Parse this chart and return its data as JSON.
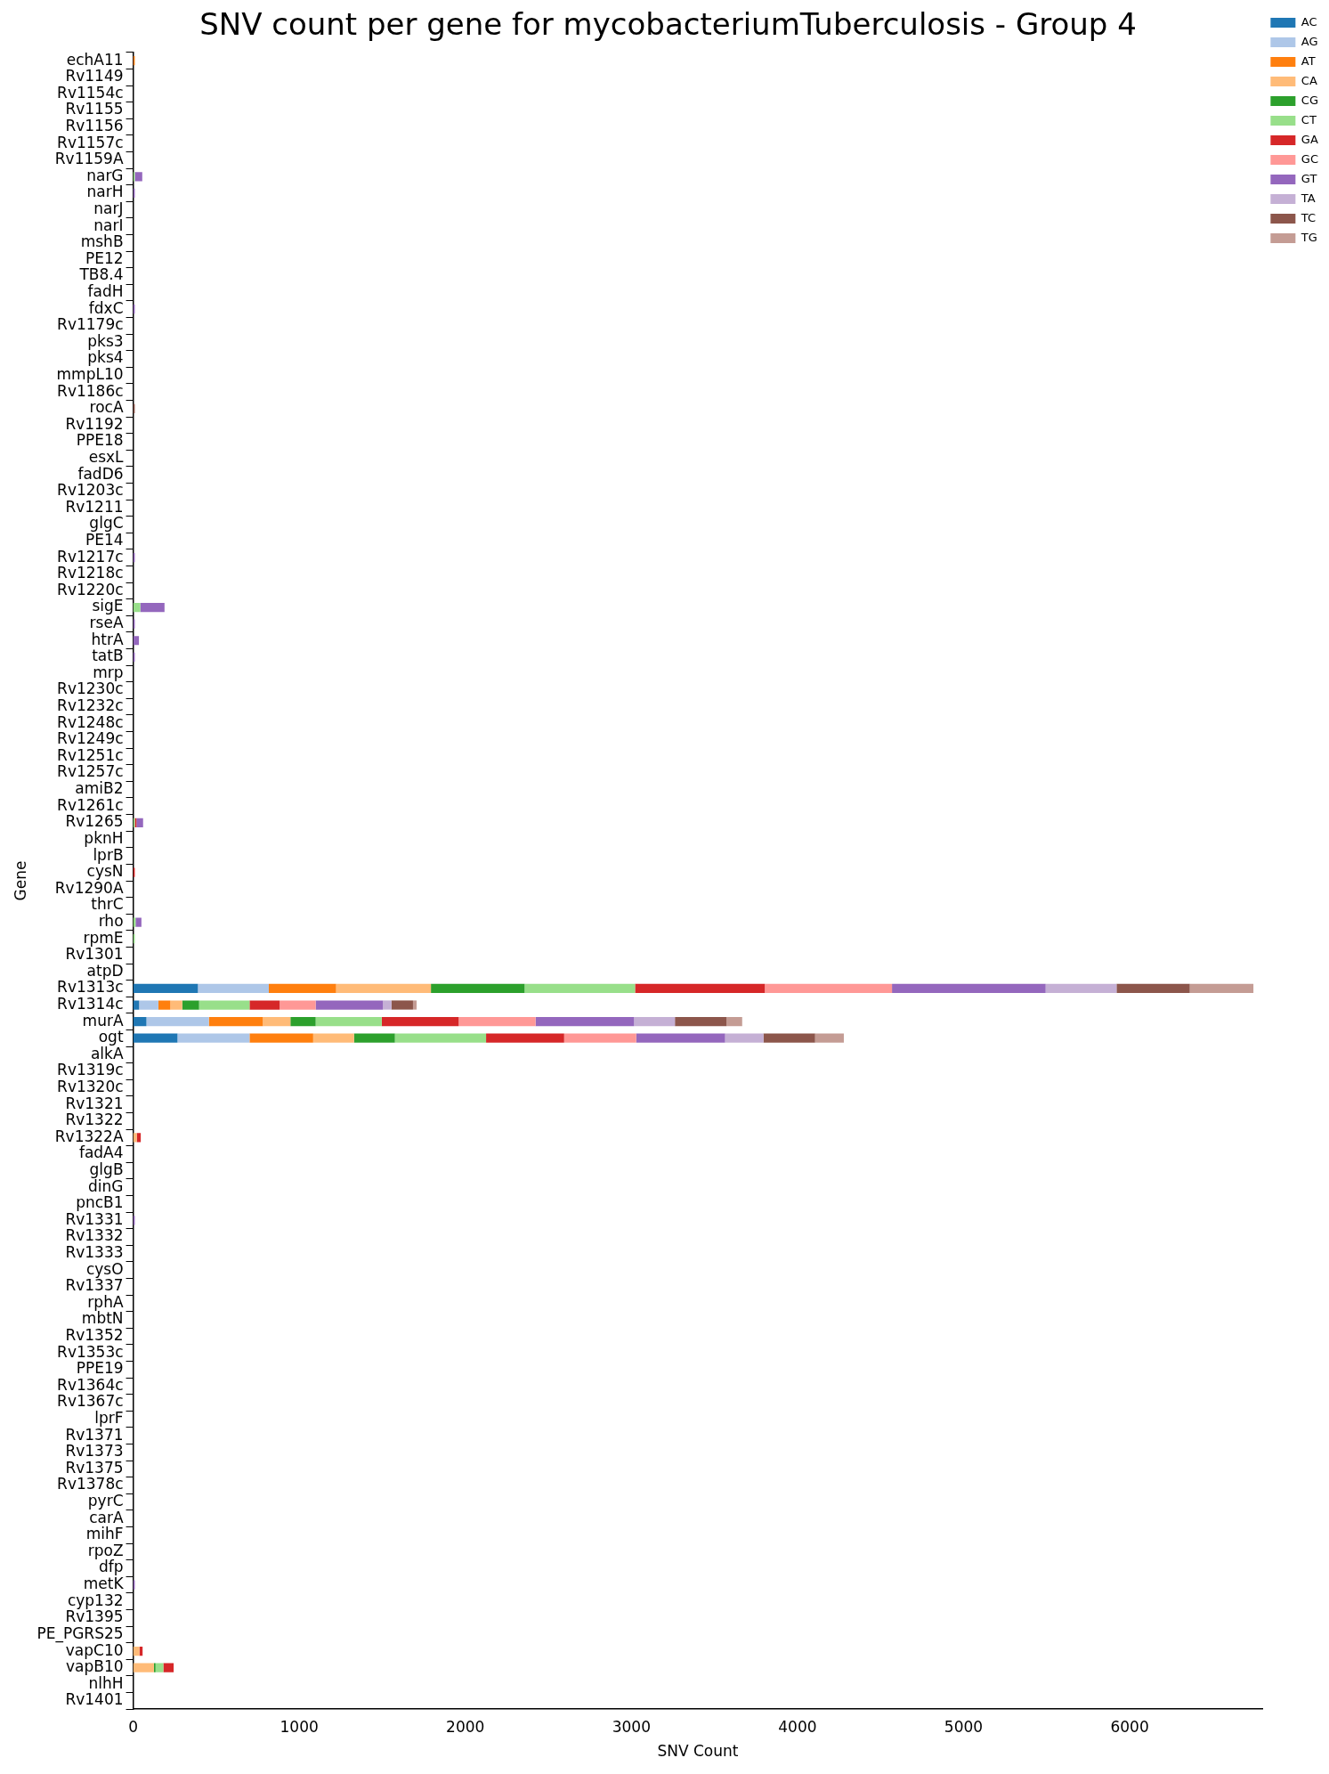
{
  "chart_data": {
    "type": "bar",
    "orientation": "horizontal",
    "stacked": true,
    "title": "SNV count per gene for mycobacteriumTuberculosis - Group 4",
    "xlabel": "SNV Count",
    "ylabel": "Gene",
    "categories": [
      "echA11",
      "Rv1149",
      "Rv1154c",
      "Rv1155",
      "Rv1156",
      "Rv1157c",
      "Rv1159A",
      "narG",
      "narH",
      "narJ",
      "narI",
      "mshB",
      "PE12",
      "TB8.4",
      "fadH",
      "fdxC",
      "Rv1179c",
      "pks3",
      "pks4",
      "mmpL10",
      "Rv1186c",
      "rocA",
      "Rv1192",
      "PPE18",
      "esxL",
      "fadD6",
      "Rv1203c",
      "Rv1211",
      "glgC",
      "PE14",
      "Rv1217c",
      "Rv1218c",
      "Rv1220c",
      "sigE",
      "rseA",
      "htrA",
      "tatB",
      "mrp",
      "Rv1230c",
      "Rv1232c",
      "Rv1248c",
      "Rv1249c",
      "Rv1251c",
      "Rv1257c",
      "amiB2",
      "Rv1261c",
      "Rv1265",
      "pknH",
      "lprB",
      "cysN",
      "Rv1290A",
      "thrC",
      "rho",
      "rpmE",
      "Rv1301",
      "atpD",
      "Rv1313c",
      "Rv1314c",
      "murA",
      "ogt",
      "alkA",
      "Rv1319c",
      "Rv1320c",
      "Rv1321",
      "Rv1322",
      "Rv1322A",
      "fadA4",
      "glgB",
      "dinG",
      "pncB1",
      "Rv1331",
      "Rv1332",
      "Rv1333",
      "cysO",
      "Rv1337",
      "rphA",
      "mbtN",
      "Rv1352",
      "Rv1353c",
      "PPE19",
      "Rv1364c",
      "Rv1367c",
      "lprF",
      "Rv1371",
      "Rv1373",
      "Rv1375",
      "Rv1378c",
      "pyrC",
      "carA",
      "mihF",
      "rpoZ",
      "dfp",
      "metK",
      "cyp132",
      "Rv1395",
      "PE_PGRS25",
      "vapC10",
      "vapB10",
      "nlhH",
      "Rv1401"
    ],
    "series": [
      {
        "name": "AC",
        "color": "#1f77b4",
        "values": [
          0,
          0,
          0,
          0,
          0,
          0,
          0,
          0,
          0,
          0,
          0,
          0,
          0,
          0,
          0,
          0,
          0,
          0,
          0,
          0,
          0,
          0,
          0,
          0,
          0,
          0,
          0,
          0,
          0,
          0,
          0,
          0,
          0,
          0,
          0,
          0,
          0,
          0,
          0,
          0,
          0,
          0,
          0,
          0,
          0,
          0,
          0,
          0,
          0,
          0,
          0,
          0,
          0,
          0,
          0,
          0,
          390,
          36,
          80,
          267,
          0,
          0,
          0,
          0,
          0,
          0,
          0,
          0,
          0,
          0,
          0,
          0,
          0,
          0,
          0,
          0,
          0,
          0,
          0,
          0,
          0,
          0,
          0,
          0,
          0,
          0,
          0,
          0,
          0,
          0,
          0,
          0,
          0,
          0,
          0,
          0,
          0,
          0,
          0,
          0
        ]
      },
      {
        "name": "AG",
        "color": "#aec7e8",
        "values": [
          0,
          0,
          0,
          0,
          0,
          0,
          0,
          0,
          0,
          0,
          0,
          0,
          0,
          0,
          0,
          0,
          0,
          0,
          0,
          0,
          0,
          0,
          0,
          0,
          0,
          0,
          0,
          0,
          0,
          0,
          0,
          0,
          0,
          0,
          0,
          0,
          0,
          0,
          0,
          0,
          0,
          0,
          0,
          0,
          0,
          0,
          0,
          0,
          0,
          0,
          0,
          0,
          0,
          0,
          0,
          0,
          427,
          116,
          376,
          434,
          0,
          0,
          0,
          0,
          0,
          0,
          0,
          0,
          0,
          0,
          0,
          0,
          0,
          0,
          0,
          0,
          0,
          0,
          0,
          0,
          0,
          0,
          0,
          0,
          0,
          0,
          0,
          0,
          0,
          0,
          0,
          0,
          0,
          0,
          0,
          0,
          0,
          0,
          0,
          0
        ]
      },
      {
        "name": "AT",
        "color": "#ff7f0e",
        "values": [
          10,
          0,
          0,
          0,
          0,
          0,
          0,
          0,
          0,
          0,
          0,
          0,
          0,
          0,
          0,
          0,
          0,
          0,
          0,
          0,
          0,
          0,
          0,
          0,
          0,
          0,
          0,
          0,
          0,
          0,
          0,
          0,
          0,
          0,
          0,
          0,
          0,
          0,
          0,
          0,
          0,
          0,
          0,
          0,
          0,
          0,
          0,
          0,
          0,
          0,
          0,
          0,
          0,
          0,
          0,
          0,
          405,
          72,
          325,
          383,
          0,
          0,
          0,
          0,
          0,
          0,
          0,
          0,
          0,
          0,
          0,
          0,
          0,
          0,
          0,
          0,
          0,
          0,
          0,
          0,
          0,
          0,
          0,
          0,
          0,
          0,
          0,
          0,
          0,
          0,
          0,
          0,
          0,
          0,
          0,
          0,
          0,
          0,
          0,
          0
        ]
      },
      {
        "name": "CA",
        "color": "#ffbb78",
        "values": [
          0,
          0,
          0,
          0,
          0,
          0,
          0,
          0,
          0,
          0,
          0,
          0,
          0,
          0,
          0,
          0,
          0,
          0,
          0,
          0,
          0,
          0,
          0,
          0,
          0,
          0,
          0,
          0,
          0,
          0,
          0,
          0,
          0,
          0,
          0,
          0,
          0,
          0,
          0,
          0,
          0,
          0,
          0,
          0,
          0,
          0,
          0,
          0,
          0,
          0,
          0,
          0,
          0,
          0,
          0,
          0,
          571,
          72,
          166,
          246,
          0,
          0,
          0,
          0,
          0,
          22,
          0,
          0,
          0,
          0,
          0,
          0,
          0,
          0,
          0,
          0,
          0,
          0,
          0,
          0,
          0,
          0,
          0,
          0,
          0,
          0,
          0,
          0,
          0,
          0,
          0,
          0,
          0,
          0,
          0,
          0,
          38,
          125,
          0,
          0
        ]
      },
      {
        "name": "CG",
        "color": "#2ca02c",
        "values": [
          0,
          0,
          0,
          0,
          0,
          0,
          0,
          0,
          0,
          0,
          0,
          0,
          0,
          0,
          0,
          0,
          0,
          0,
          0,
          0,
          0,
          0,
          0,
          0,
          0,
          0,
          0,
          0,
          0,
          0,
          0,
          0,
          0,
          0,
          0,
          0,
          0,
          0,
          0,
          0,
          0,
          0,
          0,
          0,
          0,
          0,
          0,
          0,
          0,
          0,
          0,
          0,
          0,
          0,
          0,
          0,
          564,
          101,
          152,
          246,
          0,
          0,
          0,
          0,
          0,
          0,
          0,
          0,
          0,
          0,
          0,
          0,
          0,
          0,
          0,
          0,
          0,
          0,
          0,
          0,
          0,
          0,
          0,
          0,
          0,
          0,
          0,
          0,
          0,
          0,
          0,
          0,
          0,
          0,
          0,
          0,
          0,
          10,
          0,
          0
        ]
      },
      {
        "name": "CT",
        "color": "#98df8a",
        "values": [
          0,
          0,
          0,
          0,
          0,
          0,
          0,
          10,
          0,
          0,
          0,
          0,
          0,
          0,
          0,
          0,
          0,
          0,
          0,
          0,
          0,
          0,
          0,
          0,
          0,
          0,
          0,
          0,
          0,
          0,
          0,
          0,
          0,
          43,
          0,
          0,
          0,
          0,
          0,
          0,
          0,
          0,
          0,
          0,
          0,
          0,
          10,
          0,
          0,
          0,
          0,
          0,
          15,
          10,
          0,
          0,
          665,
          304,
          398,
          549,
          0,
          0,
          0,
          0,
          0,
          0,
          0,
          0,
          0,
          0,
          0,
          0,
          0,
          0,
          0,
          0,
          0,
          0,
          0,
          0,
          0,
          0,
          0,
          0,
          0,
          0,
          0,
          0,
          0,
          0,
          0,
          0,
          0,
          0,
          0,
          0,
          0,
          47,
          0,
          0
        ]
      },
      {
        "name": "GA",
        "color": "#d62728",
        "values": [
          0,
          0,
          0,
          0,
          0,
          0,
          0,
          0,
          0,
          0,
          0,
          0,
          0,
          0,
          0,
          0,
          0,
          0,
          0,
          0,
          0,
          0,
          0,
          0,
          0,
          0,
          0,
          0,
          0,
          0,
          0,
          0,
          0,
          0,
          0,
          0,
          0,
          0,
          0,
          0,
          0,
          0,
          0,
          0,
          0,
          0,
          10,
          0,
          0,
          10,
          0,
          0,
          0,
          0,
          0,
          0,
          781,
          181,
          463,
          470,
          0,
          0,
          0,
          0,
          0,
          24,
          0,
          0,
          0,
          0,
          0,
          0,
          0,
          0,
          0,
          0,
          0,
          0,
          0,
          0,
          0,
          0,
          0,
          0,
          0,
          0,
          0,
          0,
          0,
          0,
          0,
          0,
          0,
          0,
          0,
          0,
          19,
          62,
          0,
          0
        ]
      },
      {
        "name": "GC",
        "color": "#ff9896",
        "values": [
          0,
          0,
          0,
          0,
          0,
          0,
          0,
          0,
          0,
          0,
          0,
          0,
          0,
          0,
          0,
          0,
          0,
          0,
          0,
          0,
          0,
          0,
          0,
          0,
          0,
          0,
          0,
          0,
          0,
          0,
          0,
          0,
          0,
          0,
          0,
          0,
          0,
          0,
          0,
          0,
          0,
          0,
          0,
          0,
          0,
          0,
          0,
          0,
          0,
          0,
          0,
          0,
          0,
          0,
          0,
          0,
          766,
          217,
          463,
          434,
          0,
          0,
          0,
          0,
          0,
          0,
          0,
          0,
          0,
          0,
          0,
          0,
          0,
          0,
          0,
          0,
          0,
          0,
          0,
          0,
          0,
          0,
          0,
          0,
          0,
          0,
          0,
          0,
          0,
          0,
          0,
          0,
          0,
          0,
          0,
          0,
          0,
          0,
          0,
          0
        ]
      },
      {
        "name": "GT",
        "color": "#9467bd",
        "values": [
          0,
          0,
          0,
          0,
          0,
          0,
          0,
          45,
          10,
          0,
          0,
          0,
          0,
          0,
          0,
          10,
          0,
          0,
          0,
          0,
          0,
          0,
          0,
          0,
          0,
          0,
          0,
          0,
          0,
          0,
          10,
          0,
          0,
          146,
          10,
          35,
          10,
          0,
          0,
          0,
          0,
          0,
          0,
          0,
          0,
          0,
          40,
          0,
          0,
          0,
          0,
          0,
          35,
          0,
          0,
          0,
          925,
          405,
          593,
          535,
          0,
          0,
          0,
          0,
          0,
          0,
          0,
          0,
          0,
          0,
          10,
          0,
          0,
          0,
          0,
          0,
          0,
          0,
          0,
          0,
          0,
          0,
          0,
          0,
          0,
          0,
          0,
          0,
          0,
          0,
          0,
          0,
          10,
          0,
          0,
          0,
          0,
          0,
          0,
          0
        ]
      },
      {
        "name": "TA",
        "color": "#c5b0d5",
        "values": [
          0,
          0,
          0,
          0,
          0,
          0,
          0,
          0,
          0,
          0,
          0,
          0,
          0,
          0,
          0,
          0,
          0,
          0,
          0,
          0,
          0,
          0,
          0,
          0,
          0,
          0,
          0,
          0,
          0,
          0,
          0,
          0,
          0,
          0,
          0,
          0,
          0,
          0,
          0,
          0,
          0,
          0,
          0,
          0,
          0,
          0,
          0,
          0,
          0,
          0,
          0,
          0,
          0,
          0,
          0,
          0,
          427,
          51,
          246,
          231,
          0,
          0,
          0,
          0,
          0,
          0,
          0,
          0,
          0,
          0,
          0,
          0,
          0,
          0,
          0,
          0,
          0,
          0,
          0,
          0,
          0,
          0,
          0,
          0,
          0,
          0,
          0,
          0,
          0,
          0,
          0,
          0,
          0,
          0,
          0,
          0,
          0,
          0,
          0,
          0
        ]
      },
      {
        "name": "TC",
        "color": "#8c564b",
        "values": [
          0,
          0,
          0,
          0,
          0,
          0,
          0,
          0,
          0,
          0,
          0,
          0,
          0,
          0,
          0,
          0,
          0,
          0,
          0,
          0,
          0,
          10,
          0,
          0,
          0,
          0,
          0,
          0,
          0,
          0,
          0,
          0,
          0,
          0,
          0,
          0,
          0,
          0,
          0,
          0,
          0,
          0,
          0,
          0,
          0,
          0,
          0,
          0,
          0,
          0,
          0,
          0,
          0,
          0,
          0,
          0,
          441,
          130,
          311,
          311,
          0,
          0,
          0,
          0,
          0,
          0,
          0,
          0,
          0,
          0,
          0,
          0,
          0,
          0,
          0,
          0,
          0,
          0,
          0,
          0,
          0,
          0,
          0,
          0,
          0,
          0,
          0,
          0,
          0,
          0,
          0,
          0,
          0,
          0,
          0,
          0,
          0,
          0,
          0,
          0
        ]
      },
      {
        "name": "TG",
        "color": "#c49c94",
        "values": [
          0,
          0,
          0,
          0,
          0,
          0,
          0,
          0,
          0,
          0,
          0,
          0,
          0,
          0,
          0,
          0,
          0,
          0,
          0,
          0,
          0,
          0,
          0,
          0,
          0,
          0,
          0,
          0,
          0,
          0,
          0,
          0,
          0,
          0,
          0,
          0,
          0,
          0,
          0,
          0,
          0,
          0,
          0,
          0,
          0,
          0,
          0,
          0,
          0,
          0,
          0,
          0,
          0,
          0,
          0,
          0,
          383,
          22,
          94,
          173,
          0,
          0,
          0,
          0,
          0,
          0,
          0,
          0,
          0,
          0,
          0,
          0,
          0,
          0,
          0,
          0,
          0,
          0,
          0,
          0,
          0,
          0,
          0,
          0,
          0,
          0,
          0,
          0,
          0,
          0,
          0,
          0,
          0,
          0,
          0,
          0,
          0,
          0,
          0,
          0
        ]
      }
    ],
    "xlim": [
      0,
      6800
    ],
    "xticks": [
      0,
      1000,
      2000,
      3000,
      4000,
      5000,
      6000
    ],
    "grid": false,
    "legend": "top right"
  }
}
